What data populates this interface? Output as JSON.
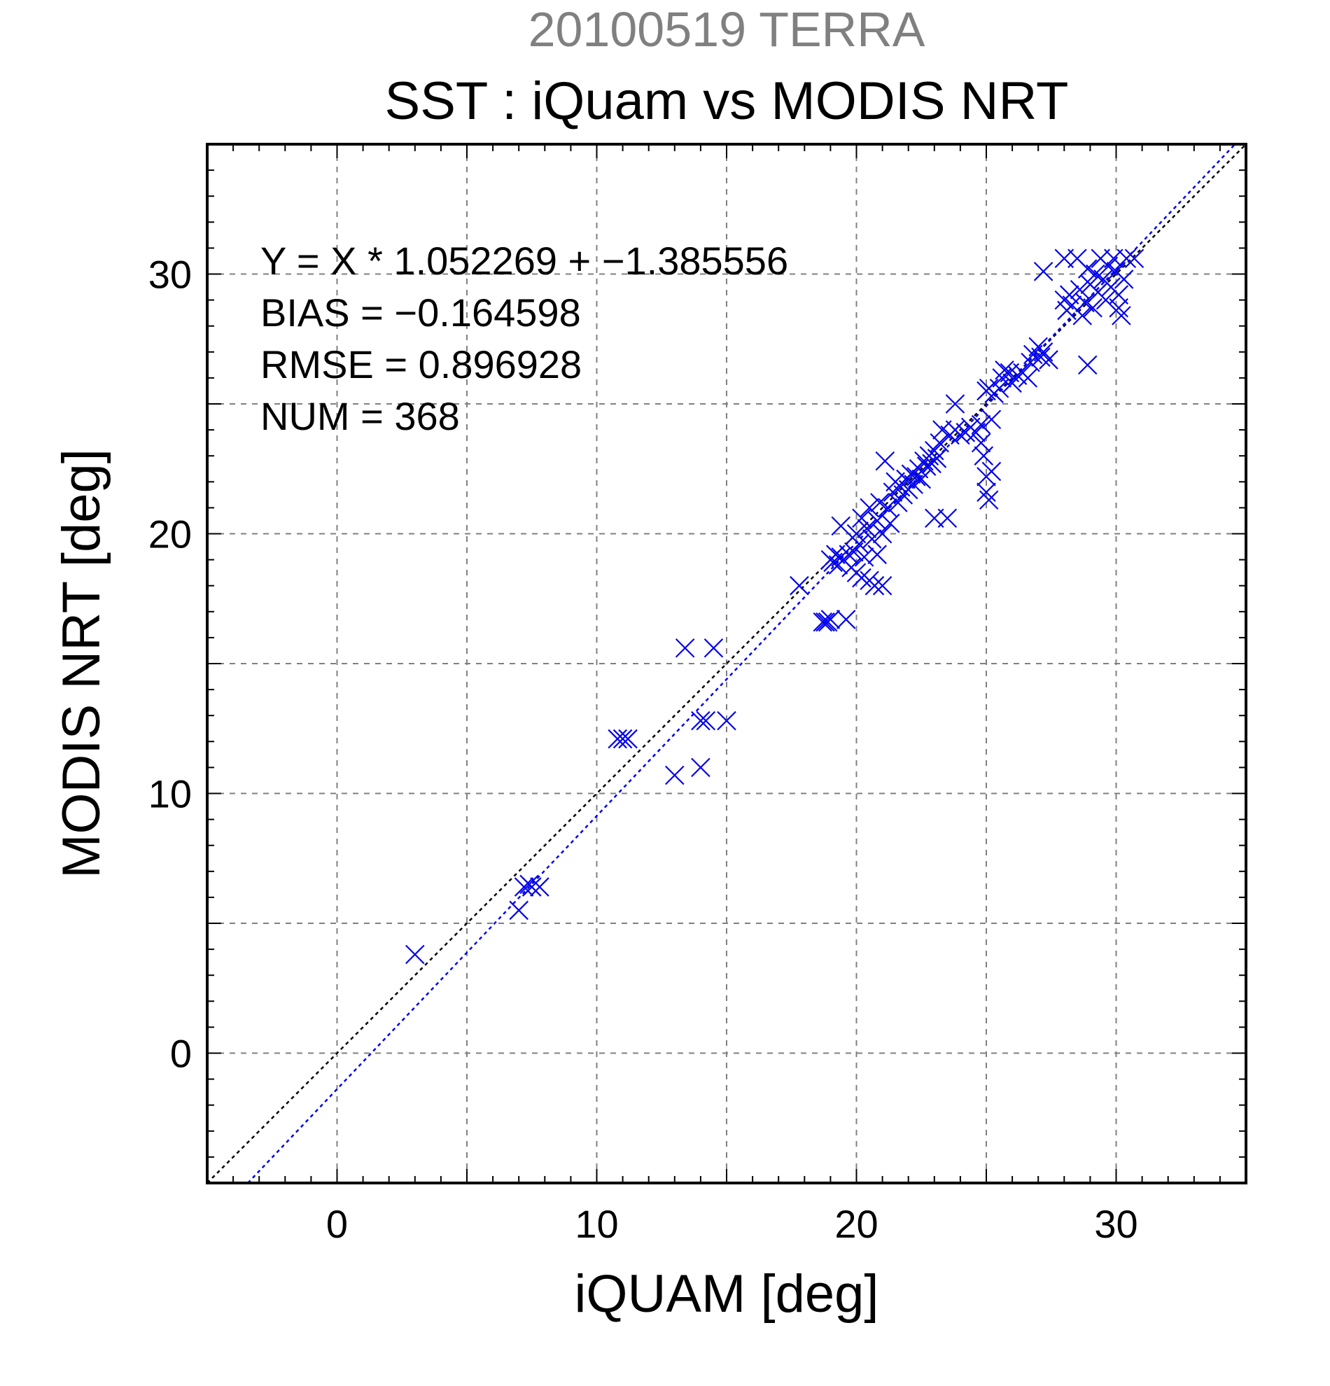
{
  "chart_data": {
    "type": "scatter",
    "title": "20100519 TERRA",
    "subtitle": "SST : iQuam vs MODIS NRT",
    "xlabel": "iQUAM [deg]",
    "ylabel": "MODIS NRT [deg]",
    "xlim": [
      -5,
      35
    ],
    "ylim": [
      -5,
      35
    ],
    "xticks": [
      0,
      10,
      20,
      30
    ],
    "yticks": [
      0,
      10,
      20,
      30
    ],
    "minor_tick_step": 1,
    "grid": true,
    "grid_step": 5,
    "stats": {
      "equation": "Y = X * 1.052269 + −1.385556",
      "bias": "BIAS = −0.164598",
      "rmse": "RMSE = 0.896928",
      "num": "NUM = 368"
    },
    "fit": {
      "slope": 1.052269,
      "intercept": -1.385556
    },
    "colors": {
      "points": "#0000ee",
      "fit_line": "#0000ee",
      "identity_line": "#000000",
      "grid": "#808080",
      "date_title": "#808080"
    },
    "marker": "x",
    "points": [
      [
        3.0,
        3.8
      ],
      [
        7.0,
        5.5
      ],
      [
        7.2,
        6.4
      ],
      [
        7.4,
        6.5
      ],
      [
        7.5,
        6.4
      ],
      [
        7.8,
        6.4
      ],
      [
        10.8,
        12.1
      ],
      [
        11.0,
        12.1
      ],
      [
        11.2,
        12.1
      ],
      [
        13.0,
        10.7
      ],
      [
        13.4,
        15.6
      ],
      [
        14.0,
        11.0
      ],
      [
        14.0,
        12.8
      ],
      [
        14.2,
        12.8
      ],
      [
        14.5,
        15.6
      ],
      [
        15.0,
        12.8
      ],
      [
        17.8,
        18.0
      ],
      [
        18.7,
        16.6
      ],
      [
        18.8,
        16.6
      ],
      [
        18.9,
        16.6
      ],
      [
        19.0,
        16.7
      ],
      [
        19.6,
        16.7
      ],
      [
        19.0,
        19.0
      ],
      [
        19.1,
        18.9
      ],
      [
        19.2,
        19.2
      ],
      [
        19.3,
        18.8
      ],
      [
        19.4,
        19.1
      ],
      [
        19.5,
        19.0
      ],
      [
        19.4,
        20.3
      ],
      [
        19.7,
        19.2
      ],
      [
        19.8,
        18.7
      ],
      [
        19.9,
        19.3
      ],
      [
        20.0,
        18.5
      ],
      [
        20.0,
        20.0
      ],
      [
        20.1,
        19.6
      ],
      [
        20.2,
        18.3
      ],
      [
        20.2,
        20.6
      ],
      [
        20.3,
        19.1
      ],
      [
        20.4,
        20.2
      ],
      [
        20.5,
        18.2
      ],
      [
        20.5,
        21.0
      ],
      [
        20.6,
        19.8
      ],
      [
        20.7,
        18.0
      ],
      [
        20.8,
        20.5
      ],
      [
        20.8,
        19.2
      ],
      [
        20.9,
        21.2
      ],
      [
        21.0,
        18.0
      ],
      [
        21.0,
        20.0
      ],
      [
        21.1,
        22.8
      ],
      [
        21.2,
        21.0
      ],
      [
        21.3,
        20.4
      ],
      [
        21.4,
        21.6
      ],
      [
        21.5,
        22.0
      ],
      [
        21.6,
        21.2
      ],
      [
        21.7,
        21.8
      ],
      [
        21.8,
        21.5
      ],
      [
        21.9,
        22.1
      ],
      [
        22.0,
        21.7
      ],
      [
        22.1,
        22.3
      ],
      [
        22.2,
        21.9
      ],
      [
        22.3,
        22.2
      ],
      [
        22.4,
        22.5
      ],
      [
        22.5,
        22.1
      ],
      [
        22.6,
        22.8
      ],
      [
        22.7,
        22.6
      ],
      [
        22.8,
        23.0
      ],
      [
        22.9,
        22.7
      ],
      [
        23.0,
        20.6
      ],
      [
        23.0,
        23.2
      ],
      [
        23.1,
        22.9
      ],
      [
        23.2,
        23.5
      ],
      [
        23.3,
        24.0
      ],
      [
        23.5,
        20.6
      ],
      [
        23.6,
        23.8
      ],
      [
        23.8,
        24.0
      ],
      [
        23.8,
        25.0
      ],
      [
        24.0,
        23.8
      ],
      [
        24.2,
        23.9
      ],
      [
        24.4,
        24.1
      ],
      [
        24.6,
        23.9
      ],
      [
        24.8,
        23.5
      ],
      [
        24.8,
        24.2
      ],
      [
        24.9,
        23.0
      ],
      [
        25.0,
        22.2
      ],
      [
        25.0,
        21.6
      ],
      [
        25.1,
        21.3
      ],
      [
        25.2,
        22.4
      ],
      [
        25.2,
        24.4
      ],
      [
        25.0,
        25.5
      ],
      [
        25.1,
        25.6
      ],
      [
        25.3,
        25.4
      ],
      [
        25.5,
        25.6
      ],
      [
        25.6,
        26.0
      ],
      [
        25.7,
        26.3
      ],
      [
        25.9,
        26.2
      ],
      [
        26.0,
        25.8
      ],
      [
        26.2,
        26.1
      ],
      [
        26.4,
        26.2
      ],
      [
        26.6,
        26.0
      ],
      [
        26.7,
        26.6
      ],
      [
        26.8,
        26.9
      ],
      [
        27.0,
        27.2
      ],
      [
        27.1,
        26.8
      ],
      [
        27.2,
        27.0
      ],
      [
        27.4,
        26.7
      ],
      [
        27.2,
        30.1
      ],
      [
        28.0,
        30.6
      ],
      [
        28.0,
        29.0
      ],
      [
        28.1,
        28.6
      ],
      [
        28.2,
        29.2
      ],
      [
        28.3,
        28.8
      ],
      [
        28.5,
        30.6
      ],
      [
        28.6,
        29.4
      ],
      [
        28.7,
        28.4
      ],
      [
        28.8,
        28.9
      ],
      [
        28.9,
        26.5
      ],
      [
        28.9,
        30.2
      ],
      [
        29.0,
        29.6
      ],
      [
        29.1,
        28.7
      ],
      [
        29.2,
        30.0
      ],
      [
        29.3,
        29.3
      ],
      [
        29.4,
        30.6
      ],
      [
        29.5,
        29.8
      ],
      [
        29.6,
        29.0
      ],
      [
        29.7,
        30.3
      ],
      [
        29.8,
        29.5
      ],
      [
        29.9,
        30.6
      ],
      [
        30.0,
        30.1
      ],
      [
        30.1,
        29.2
      ],
      [
        30.1,
        28.7
      ],
      [
        30.2,
        28.4
      ],
      [
        30.3,
        29.8
      ],
      [
        30.4,
        30.6
      ],
      [
        30.7,
        30.6
      ]
    ]
  }
}
